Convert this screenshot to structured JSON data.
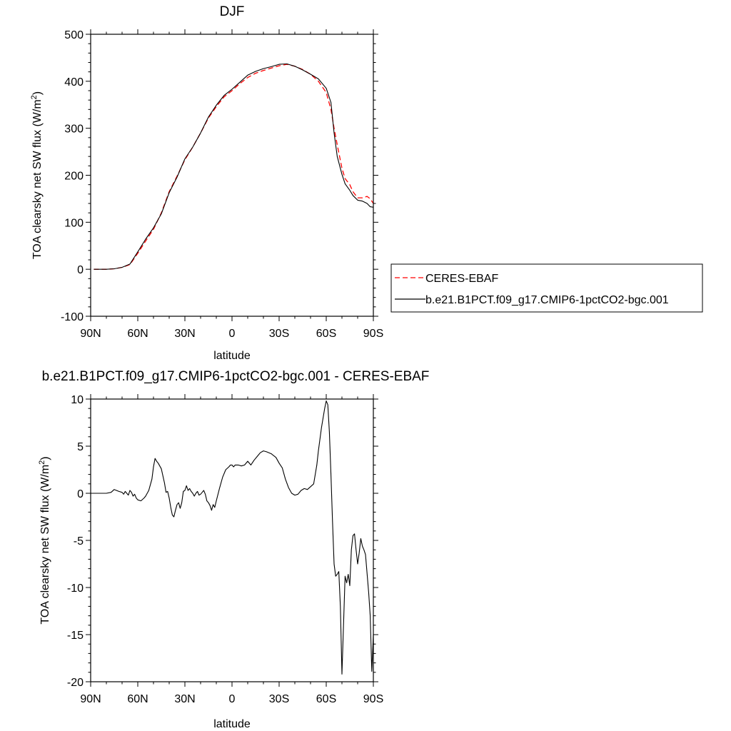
{
  "chart_data": [
    {
      "type": "line",
      "title": "DJF",
      "xlabel": "latitude",
      "ylabel": "TOA clearsky net SW flux (W/m",
      "ylabel_sup": "2",
      "ylabel_tail": ")",
      "xlim": [
        90,
        -90
      ],
      "ylim": [
        -100,
        500
      ],
      "x_ticks": [
        {
          "value": 90,
          "label": "90N"
        },
        {
          "value": 60,
          "label": "60N"
        },
        {
          "value": 30,
          "label": "30N"
        },
        {
          "value": 0,
          "label": "0"
        },
        {
          "value": -30,
          "label": "30S"
        },
        {
          "value": -60,
          "label": "60S"
        },
        {
          "value": -90,
          "label": "90S"
        }
      ],
      "y_ticks": [
        {
          "value": 500,
          "label": "500"
        },
        {
          "value": 400,
          "label": "400"
        },
        {
          "value": 300,
          "label": "300"
        },
        {
          "value": 200,
          "label": "200"
        },
        {
          "value": 100,
          "label": "100"
        },
        {
          "value": 0,
          "label": "0"
        },
        {
          "value": -100,
          "label": "-100"
        }
      ],
      "legend": "outside-right",
      "series": [
        {
          "name": "CERES-EBAF",
          "color": "#ff0000",
          "dashed": true,
          "x": [
            88,
            80,
            75,
            70,
            65,
            60,
            55,
            50,
            45,
            40,
            35,
            30,
            25,
            20,
            15,
            10,
            5,
            0,
            -5,
            -10,
            -15,
            -20,
            -25,
            -30,
            -35,
            -40,
            -45,
            -50,
            -55,
            -60,
            -63,
            -65,
            -67,
            -70,
            -72,
            -75,
            -77,
            -80,
            -83,
            -86,
            -88,
            -90
          ],
          "y": [
            0,
            0,
            1,
            4,
            10,
            34,
            60,
            85,
            120,
            165,
            198,
            233,
            260,
            290,
            322,
            346,
            367,
            380,
            395,
            408,
            417,
            423,
            428,
            433,
            436,
            432,
            425,
            415,
            400,
            376,
            340,
            300,
            265,
            215,
            193,
            180,
            165,
            152,
            152,
            155,
            150,
            140
          ]
        },
        {
          "name": "b.e21.B1PCT.f09_g17.CMIP6-1pctCO2-bgc.001",
          "color": "#000000",
          "dashed": false,
          "x": [
            88,
            80,
            75,
            70,
            65,
            60,
            55,
            50,
            45,
            40,
            35,
            30,
            25,
            20,
            15,
            10,
            5,
            0,
            -5,
            -10,
            -15,
            -20,
            -25,
            -30,
            -35,
            -40,
            -45,
            -50,
            -55,
            -60,
            -63,
            -65,
            -67,
            -70,
            -72,
            -75,
            -77,
            -80,
            -83,
            -86,
            -88,
            -90
          ],
          "y": [
            0,
            0,
            1,
            4,
            11,
            37,
            64,
            88,
            118,
            163,
            196,
            235,
            260,
            290,
            324,
            349,
            370,
            383,
            398,
            413,
            421,
            427,
            431,
            436,
            437,
            432,
            424,
            415,
            405,
            385,
            355,
            290,
            240,
            202,
            182,
            168,
            157,
            147,
            145,
            140,
            133,
            132
          ]
        }
      ]
    },
    {
      "type": "line",
      "title": "b.e21.B1PCT.f09_g17.CMIP6-1pctCO2-bgc.001 - CERES-EBAF",
      "xlabel": "latitude",
      "ylabel": "TOA clearsky net SW flux (W/m",
      "ylabel_sup": "2",
      "ylabel_tail": ")",
      "xlim": [
        90,
        -90
      ],
      "ylim": [
        -20,
        10
      ],
      "x_ticks": [
        {
          "value": 90,
          "label": "90N"
        },
        {
          "value": 60,
          "label": "60N"
        },
        {
          "value": 30,
          "label": "30N"
        },
        {
          "value": 0,
          "label": "0"
        },
        {
          "value": -30,
          "label": "30S"
        },
        {
          "value": -60,
          "label": "60S"
        },
        {
          "value": -90,
          "label": "90S"
        }
      ],
      "y_ticks": [
        {
          "value": 10,
          "label": "10"
        },
        {
          "value": 5,
          "label": "5"
        },
        {
          "value": 0,
          "label": "0"
        },
        {
          "value": -5,
          "label": "-5"
        },
        {
          "value": -10,
          "label": "-10"
        },
        {
          "value": -15,
          "label": "-15"
        },
        {
          "value": -20,
          "label": "-20"
        }
      ],
      "series": [
        {
          "color": "#000000",
          "x": [
            90,
            80,
            77,
            75,
            72,
            70,
            69,
            68,
            67,
            66,
            65,
            64,
            63,
            62,
            61,
            60,
            58,
            56,
            55,
            53,
            51,
            50,
            49,
            48,
            47,
            45,
            43,
            42,
            41,
            40,
            39,
            38,
            37,
            36,
            35,
            34,
            33,
            32,
            31,
            30,
            29,
            28,
            27,
            26,
            25,
            24,
            23,
            22,
            21,
            20,
            19,
            18,
            17,
            16,
            15,
            14,
            13,
            12,
            11,
            10,
            8,
            6,
            4,
            2,
            1,
            0,
            -1,
            -2,
            -4,
            -6,
            -8,
            -10,
            -12,
            -14,
            -16,
            -18,
            -20,
            -22,
            -25,
            -28,
            -30,
            -32,
            -34,
            -36,
            -38,
            -40,
            -42,
            -44,
            -46,
            -48,
            -50,
            -52,
            -54,
            -55,
            -57,
            -59,
            -60,
            -61,
            -62,
            -63,
            -64,
            -65,
            -66,
            -67,
            -68,
            -69,
            -70,
            -71,
            -72,
            -73,
            -74,
            -75,
            -76,
            -77,
            -78,
            -79,
            -80,
            -81,
            -82,
            -83,
            -84,
            -85,
            -86,
            -87,
            -88,
            -89,
            -90
          ],
          "y": [
            0,
            0,
            0.1,
            0.4,
            0.2,
            0.1,
            -0.1,
            0.2,
            0.0,
            -0.2,
            0.3,
            0.1,
            -0.3,
            -0.1,
            -0.5,
            -0.7,
            -0.8,
            -0.5,
            -0.3,
            0.3,
            1.5,
            2.8,
            3.7,
            3.4,
            3.2,
            2.6,
            1.1,
            0.1,
            0.2,
            -0.5,
            -1.5,
            -2.3,
            -2.5,
            -1.8,
            -1.2,
            -1.0,
            -1.6,
            -1.0,
            0.2,
            0.3,
            0.8,
            0.3,
            0.5,
            0.2,
            0.0,
            -0.3,
            0.0,
            0.2,
            -0.2,
            -0.1,
            0.1,
            0.3,
            -0.1,
            -0.8,
            -1.0,
            -1.3,
            -1.8,
            -1.2,
            -1.5,
            -0.8,
            0.5,
            1.7,
            2.5,
            2.8,
            3.0,
            3.0,
            2.8,
            3.0,
            3.0,
            2.9,
            3.0,
            3.4,
            3.0,
            3.5,
            3.9,
            4.3,
            4.5,
            4.4,
            4.2,
            3.8,
            3.2,
            2.7,
            1.5,
            0.6,
            0.0,
            -0.2,
            -0.1,
            0.3,
            0.5,
            0.4,
            0.7,
            1.0,
            3.0,
            4.5,
            7.0,
            9.0,
            9.8,
            9.4,
            6.5,
            2.0,
            -3.0,
            -7.5,
            -8.8,
            -8.6,
            -8.3,
            -12.0,
            -19.2,
            -14.0,
            -8.8,
            -9.5,
            -8.6,
            -9.8,
            -6.0,
            -4.5,
            -4.3,
            -6.0,
            -7.5,
            -6.3,
            -4.8,
            -5.6,
            -6.0,
            -6.5,
            -8.5,
            -10.5,
            -13.0,
            -18.9,
            -15.0
          ]
        }
      ]
    }
  ],
  "legend": {
    "items": [
      {
        "label": "CERES-EBAF",
        "color": "#ff0000",
        "dashed": true
      },
      {
        "label": "b.e21.B1PCT.f09_g17.CMIP6-1pctCO2-bgc.001",
        "color": "#000000",
        "dashed": false
      }
    ]
  }
}
